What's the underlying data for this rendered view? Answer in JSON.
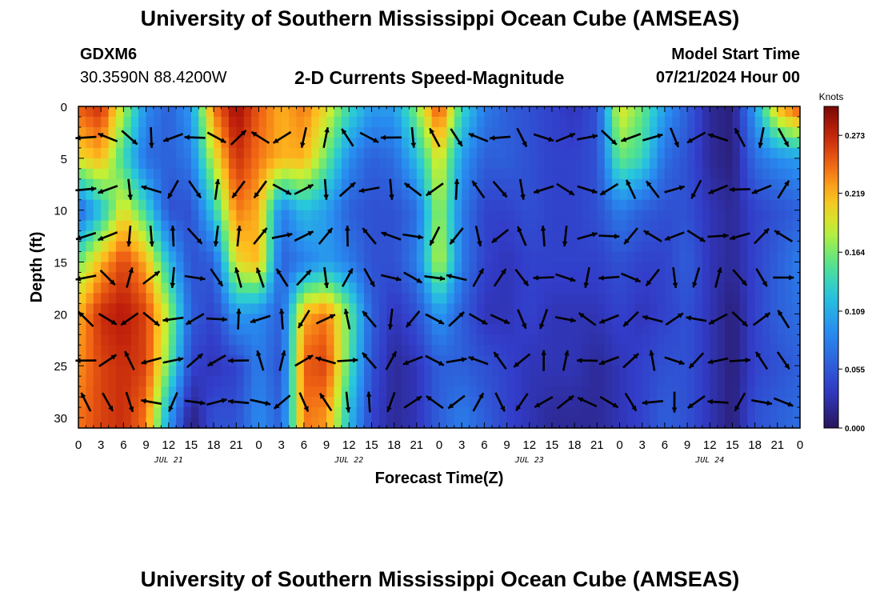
{
  "header": {
    "title": "University of Southern Mississippi Ocean Cube (AMSEAS)",
    "station": "GDXM6",
    "coords": "30.3590N  88.4200W",
    "subtitle": "2-D Currents Speed-Magnitude",
    "model_start_label": "Model Start Time",
    "model_start_value": "07/21/2024 Hour 00"
  },
  "footer": {
    "title": "University of Southern Mississippi Ocean Cube (AMSEAS)"
  },
  "chart_data": {
    "type": "heatmap",
    "xlabel": "Forecast Time(Z)",
    "ylabel": "Depth (ft)",
    "x_ticks": [
      "0",
      "3",
      "6",
      "9",
      "12",
      "15",
      "18",
      "21",
      "0",
      "3",
      "6",
      "9",
      "12",
      "15",
      "18",
      "21",
      "0",
      "3",
      "6",
      "9",
      "12",
      "15",
      "18",
      "21",
      "0",
      "3",
      "6",
      "9",
      "12",
      "15",
      "18",
      "21",
      "0"
    ],
    "day_labels": [
      "JUL 21",
      "JUL 22",
      "JUL 23",
      "JUL 24"
    ],
    "x_range_hours": [
      0,
      96
    ],
    "y_ticks": [
      0,
      5,
      10,
      15,
      20,
      25,
      30
    ],
    "y_range_ft": [
      0,
      31
    ],
    "y_inverted": true,
    "colorbar": {
      "title": "Knots",
      "ticks": [
        "0.273",
        "0.219",
        "0.164",
        "0.109",
        "0.055",
        "0.000"
      ],
      "range": [
        0,
        0.3
      ],
      "colormap": "jet"
    },
    "speed_grid_hours": [
      0,
      3,
      6,
      9,
      12,
      15,
      18,
      21,
      24,
      27,
      30,
      33,
      36,
      39,
      42,
      45,
      48,
      51,
      54,
      57,
      60,
      63,
      66,
      69,
      72,
      75,
      78,
      81,
      84,
      87,
      90,
      93,
      96
    ],
    "speed_grid_depths_ft": [
      0,
      5,
      10,
      15,
      20,
      25,
      30
    ],
    "speed_knots": [
      [
        0.25,
        0.27,
        0.18,
        0.09,
        0.06,
        0.1,
        0.24,
        0.29,
        0.25,
        0.22,
        0.24,
        0.2,
        0.14,
        0.1,
        0.1,
        0.17,
        0.26,
        0.14,
        0.08,
        0.06,
        0.05,
        0.04,
        0.03,
        0.05,
        0.2,
        0.16,
        0.1,
        0.06,
        0.02,
        0.01,
        0.1,
        0.22,
        0.26
      ],
      [
        0.2,
        0.22,
        0.14,
        0.07,
        0.06,
        0.08,
        0.19,
        0.27,
        0.24,
        0.22,
        0.22,
        0.16,
        0.09,
        0.06,
        0.07,
        0.12,
        0.2,
        0.1,
        0.06,
        0.06,
        0.05,
        0.04,
        0.04,
        0.05,
        0.16,
        0.14,
        0.07,
        0.05,
        0.02,
        0.01,
        0.07,
        0.09,
        0.1
      ],
      [
        0.06,
        0.12,
        0.2,
        0.14,
        0.05,
        0.05,
        0.13,
        0.24,
        0.22,
        0.08,
        0.12,
        0.1,
        0.06,
        0.05,
        0.05,
        0.07,
        0.18,
        0.08,
        0.04,
        0.04,
        0.05,
        0.04,
        0.04,
        0.05,
        0.08,
        0.06,
        0.05,
        0.05,
        0.03,
        0.02,
        0.04,
        0.05,
        0.06
      ],
      [
        0.16,
        0.22,
        0.26,
        0.22,
        0.12,
        0.05,
        0.06,
        0.2,
        0.22,
        0.06,
        0.08,
        0.1,
        0.08,
        0.05,
        0.05,
        0.08,
        0.19,
        0.08,
        0.04,
        0.03,
        0.04,
        0.04,
        0.04,
        0.04,
        0.05,
        0.04,
        0.04,
        0.06,
        0.03,
        0.02,
        0.04,
        0.06,
        0.08
      ],
      [
        0.22,
        0.27,
        0.28,
        0.26,
        0.18,
        0.06,
        0.04,
        0.1,
        0.09,
        0.06,
        0.22,
        0.24,
        0.16,
        0.06,
        0.03,
        0.05,
        0.1,
        0.06,
        0.03,
        0.03,
        0.04,
        0.03,
        0.03,
        0.03,
        0.04,
        0.03,
        0.04,
        0.05,
        0.03,
        0.01,
        0.04,
        0.06,
        0.07
      ],
      [
        0.23,
        0.26,
        0.27,
        0.26,
        0.16,
        0.04,
        0.03,
        0.04,
        0.08,
        0.05,
        0.25,
        0.26,
        0.15,
        0.05,
        0.02,
        0.03,
        0.06,
        0.06,
        0.05,
        0.04,
        0.03,
        0.03,
        0.03,
        0.02,
        0.03,
        0.04,
        0.05,
        0.05,
        0.03,
        0.01,
        0.04,
        0.05,
        0.06
      ],
      [
        0.24,
        0.26,
        0.27,
        0.24,
        0.1,
        0.01,
        0.05,
        0.05,
        0.09,
        0.06,
        0.24,
        0.23,
        0.12,
        0.04,
        0.02,
        0.03,
        0.06,
        0.08,
        0.06,
        0.04,
        0.03,
        0.02,
        0.02,
        0.02,
        0.03,
        0.04,
        0.06,
        0.05,
        0.03,
        0.01,
        0.05,
        0.06,
        0.07
      ]
    ],
    "current_vectors_note": "Arrows indicate current direction at each time/depth grid point"
  }
}
